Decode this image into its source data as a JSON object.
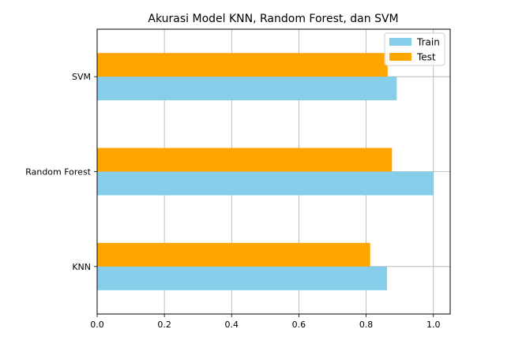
{
  "chart_data": {
    "type": "bar",
    "orientation": "horizontal",
    "title": "Akurasi Model KNN, Random Forest, dan SVM",
    "xlabel": "",
    "ylabel": "",
    "categories": [
      "KNN",
      "Random Forest",
      "SVM"
    ],
    "series": [
      {
        "name": "Train",
        "color": "#87ceeb",
        "values": [
          0.862,
          1.0,
          0.891
        ]
      },
      {
        "name": "Test",
        "color": "#ffa500",
        "values": [
          0.812,
          0.877,
          0.864
        ]
      }
    ],
    "xlim": [
      0,
      1.05
    ],
    "xticks": [
      "0.0",
      "0.2",
      "0.4",
      "0.6",
      "0.8",
      "1.0"
    ],
    "grid": true,
    "legend_position": "top-right"
  }
}
